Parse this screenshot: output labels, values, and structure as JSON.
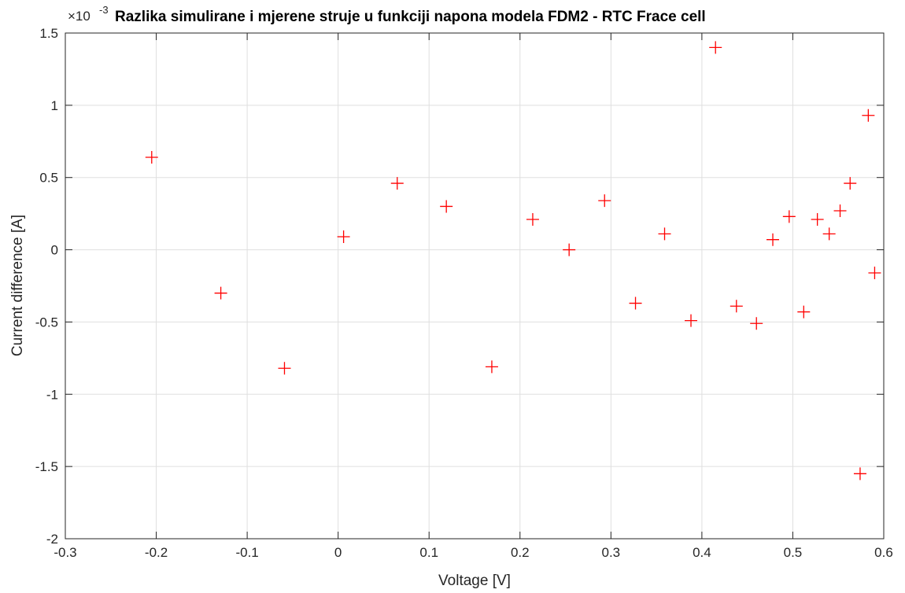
{
  "chart_data": {
    "type": "scatter",
    "title": "Razlika simulirane i mjerene struje u funkciji napona modela FDM2 - RTC Frace cell",
    "xlabel": "Voltage [V]",
    "ylabel": "Current difference [A]",
    "y_exponent_prefix": "×10",
    "y_exponent": "-3",
    "xlim": [
      -0.3,
      0.6
    ],
    "ylim": [
      -2,
      1.5
    ],
    "grid": true,
    "marker": "+",
    "marker_color": "#ff0000",
    "x_ticks": [
      -0.3,
      -0.2,
      -0.1,
      0,
      0.1,
      0.2,
      0.3,
      0.4,
      0.5,
      0.6
    ],
    "x_tick_labels": [
      "-0.3",
      "-0.2",
      "-0.1",
      "0",
      "0.1",
      "0.2",
      "0.3",
      "0.4",
      "0.5",
      "0.6"
    ],
    "y_ticks": [
      -2,
      -1.5,
      -1,
      -0.5,
      0,
      0.5,
      1,
      1.5
    ],
    "y_tick_labels": [
      "-2",
      "-1.5",
      "-1",
      "-0.5",
      "0",
      "0.5",
      "1",
      "1.5"
    ],
    "points": [
      {
        "x": -0.205,
        "y": 0.64
      },
      {
        "x": -0.129,
        "y": -0.3
      },
      {
        "x": -0.059,
        "y": -0.82
      },
      {
        "x": 0.006,
        "y": 0.09
      },
      {
        "x": 0.065,
        "y": 0.46
      },
      {
        "x": 0.119,
        "y": 0.3
      },
      {
        "x": 0.169,
        "y": -0.81
      },
      {
        "x": 0.214,
        "y": 0.21
      },
      {
        "x": 0.254,
        "y": 0.0
      },
      {
        "x": 0.293,
        "y": 0.34
      },
      {
        "x": 0.327,
        "y": -0.37
      },
      {
        "x": 0.359,
        "y": 0.11
      },
      {
        "x": 0.388,
        "y": -0.49
      },
      {
        "x": 0.415,
        "y": 1.4
      },
      {
        "x": 0.438,
        "y": -0.39
      },
      {
        "x": 0.46,
        "y": -0.51
      },
      {
        "x": 0.478,
        "y": 0.07
      },
      {
        "x": 0.496,
        "y": 0.23
      },
      {
        "x": 0.512,
        "y": -0.43
      },
      {
        "x": 0.527,
        "y": 0.21
      },
      {
        "x": 0.54,
        "y": 0.11
      },
      {
        "x": 0.552,
        "y": 0.27
      },
      {
        "x": 0.563,
        "y": 0.46
      },
      {
        "x": 0.574,
        "y": -1.55
      },
      {
        "x": 0.583,
        "y": 0.93
      },
      {
        "x": 0.59,
        "y": -0.16
      }
    ]
  }
}
